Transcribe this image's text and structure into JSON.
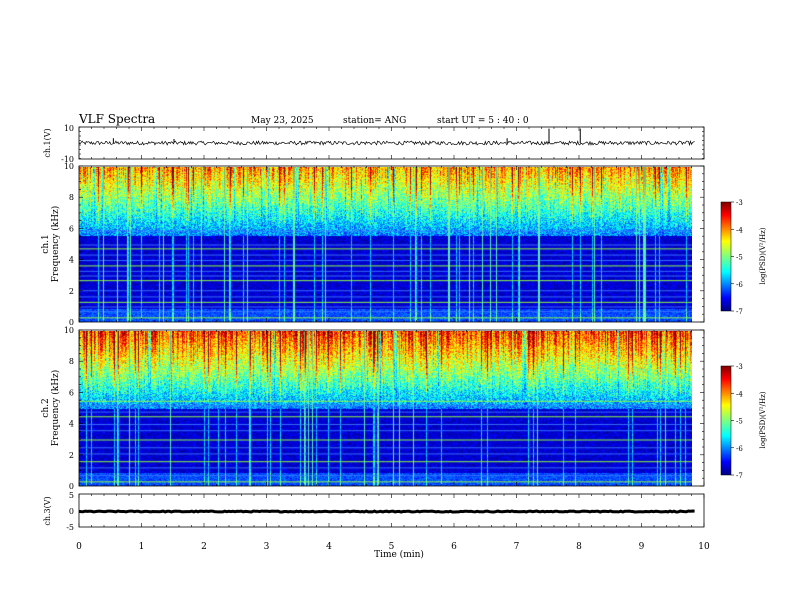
{
  "header": {
    "title": "VLF Spectra",
    "date": "May 23, 2025",
    "station": "station= ANG",
    "start": "start  UT =   5  : 40 : 0"
  },
  "chart_data": [
    {
      "type": "line",
      "panel": "ch1-voltage",
      "ylabel": "ch.1(V)",
      "ylim": [
        -10,
        10
      ],
      "yticks": [
        "10",
        "-10"
      ],
      "xlim": [
        0,
        10
      ],
      "series": [
        {
          "baseline": 0,
          "noise_amplitude": 1.2,
          "spikes": [
            {
              "x": 0.55,
              "y": 3
            },
            {
              "x": 1.52,
              "y": 2.5
            },
            {
              "x": 6.85,
              "y": 3
            },
            {
              "x": 7.52,
              "y": 9
            },
            {
              "x": 8.02,
              "y": 9
            }
          ]
        }
      ]
    },
    {
      "type": "heatmap",
      "panel": "ch1-spectrogram",
      "ylabel_top": "ch.1",
      "ylabel": "Frequency (kHz)",
      "ylim": [
        0,
        10
      ],
      "yticks": [
        "0",
        "2",
        "4",
        "6",
        "8",
        "10"
      ],
      "xlim": [
        0,
        9.85
      ],
      "band_intensity_top": 0.62,
      "band_split_khz": 5.6,
      "harmonic_lines_khz": [
        0.3,
        0.7,
        1.0,
        1.3,
        1.65,
        2.05,
        2.7,
        3.0,
        3.3,
        3.65,
        4.0,
        4.35,
        4.75,
        5.0,
        5.9
      ],
      "colorbar": {
        "label": "log(PSD)(V²/Hz)",
        "range": [
          -7,
          -3
        ],
        "ticks": [
          "-3",
          "-4",
          "-5",
          "-6",
          "-7"
        ]
      }
    },
    {
      "type": "heatmap",
      "panel": "ch2-spectrogram",
      "ylabel_top": "ch.2",
      "ylabel": "Frequency (kHz)",
      "ylim": [
        0,
        10
      ],
      "yticks": [
        "0",
        "2",
        "4",
        "6",
        "8",
        "10"
      ],
      "xlim": [
        0,
        9.85
      ],
      "band_intensity_top": 0.75,
      "band_split_khz": 5.0,
      "harmonic_lines_khz": [
        0.3,
        0.7,
        1.2,
        1.6,
        2.1,
        2.5,
        3.0,
        3.6,
        4.0,
        4.5,
        4.8,
        5.2,
        5.5
      ],
      "colorbar": {
        "label": "log(PSD)(V²/Hz)",
        "range": [
          -7,
          -3
        ],
        "ticks": [
          "-3",
          "-4",
          "-5",
          "-6",
          "-7"
        ]
      }
    },
    {
      "type": "line",
      "panel": "ch3-voltage",
      "ylabel": "ch.3(V)",
      "ylim": [
        -5,
        5
      ],
      "yticks": [
        "5",
        "0",
        "-5"
      ],
      "xlim": [
        0,
        10
      ],
      "series": [
        {
          "baseline": 0,
          "noise_amplitude": 0.15
        }
      ]
    }
  ],
  "xaxis": {
    "label": "Time  (min)",
    "range": [
      0,
      10
    ],
    "ticks": [
      "0",
      "1",
      "2",
      "3",
      "4",
      "5",
      "6",
      "7",
      "8",
      "9",
      "10"
    ]
  },
  "colors": {
    "jet": [
      "#00007f",
      "#0000ff",
      "#007fff",
      "#00ffff",
      "#7fff7f",
      "#ffff00",
      "#ff7f00",
      "#ff0000",
      "#7f0000"
    ],
    "harmonic_line": "#90ff40",
    "trace": "#000000"
  }
}
